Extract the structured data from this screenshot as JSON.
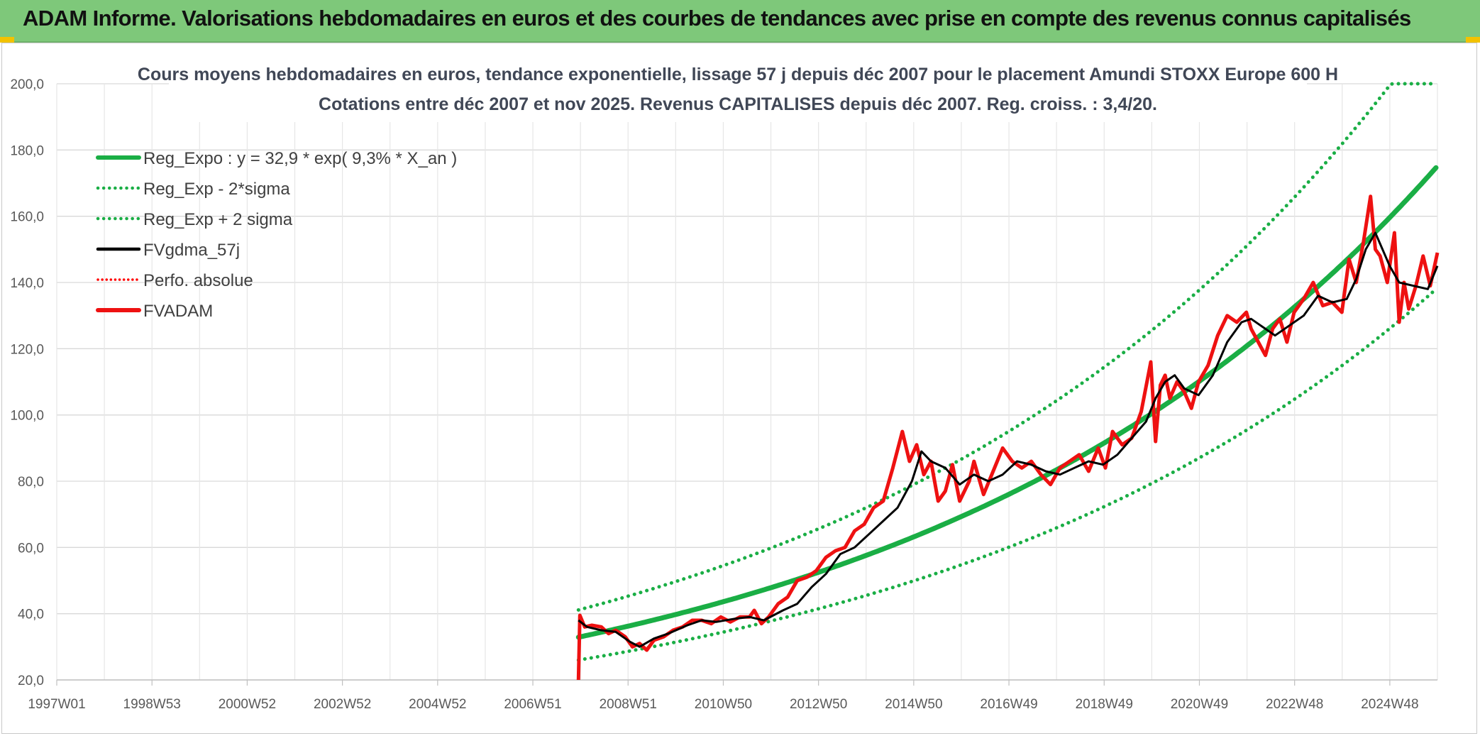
{
  "header": {
    "title": "ADAM Informe. Valorisations hebdomadaires en euros et des courbes de tendances avec prise en compte des revenus connus capitalisés",
    "color": "#7ec87a"
  },
  "chart_data": {
    "type": "line",
    "title": "Cours moyens hebdomadaires en euros, tendance exponentielle, lissage 57 j depuis déc 2007 pour le placement Amundi STOXX Europe 600 H",
    "subtitle": "Cotations entre déc 2007 et nov 2025. Revenus CAPITALISES depuis déc 2007. Reg. croiss. : 3,4/20.",
    "xlabel": "",
    "ylabel": "",
    "ylim": [
      20,
      200
    ],
    "y_ticks": [
      "200,0",
      "180,0",
      "160,0",
      "140,0",
      "120,0",
      "100,0",
      "80,0",
      "60,0",
      "40,0",
      "20,0"
    ],
    "xlim": [
      1997.0,
      2025.9
    ],
    "x_ticks": [
      "1997W01",
      "1998W53",
      "2000W52",
      "2002W52",
      "2004W52",
      "2006W51",
      "2008W51",
      "2010W50",
      "2012W50",
      "2014W50",
      "2016W49",
      "2018W49",
      "2020W49",
      "2022W48",
      "2024W48"
    ],
    "grid": true,
    "legend_position": "top-left",
    "regression": {
      "a": 32.9,
      "rate": 0.093,
      "start": 2007.92,
      "lower_factor": 0.79,
      "upper_factor": 1.25
    },
    "series": [
      {
        "name": "Reg_Expo : y = 32,9 * exp( 9,3% *  X_an )",
        "color": "#1aae45",
        "style": "solid-thick"
      },
      {
        "name": "Reg_Exp - 2*sigma",
        "color": "#1aae45",
        "style": "dotted"
      },
      {
        "name": "Reg_Exp + 2 sigma",
        "color": "#1aae45",
        "style": "dotted"
      },
      {
        "name": "FVgdma_57j",
        "color": "#000000",
        "style": "solid",
        "x": [
          2007.92,
          2008.1,
          2008.4,
          2008.7,
          2009.0,
          2009.2,
          2009.5,
          2009.8,
          2010.2,
          2010.5,
          2010.8,
          2011.2,
          2011.5,
          2011.8,
          2012.2,
          2012.5,
          2012.8,
          2013.1,
          2013.4,
          2013.7,
          2014.0,
          2014.3,
          2014.6,
          2014.9,
          2015.1,
          2015.3,
          2015.6,
          2015.9,
          2016.2,
          2016.5,
          2016.8,
          2017.1,
          2017.4,
          2017.7,
          2018.0,
          2018.3,
          2018.6,
          2018.9,
          2019.2,
          2019.5,
          2019.8,
          2020.0,
          2020.2,
          2020.4,
          2020.6,
          2020.9,
          2021.2,
          2021.5,
          2021.8,
          2022.0,
          2022.2,
          2022.5,
          2022.8,
          2023.1,
          2023.4,
          2023.7,
          2024.0,
          2024.2,
          2024.4,
          2024.6,
          2024.9,
          2025.1,
          2025.4,
          2025.7,
          2025.9
        ],
        "y": [
          38,
          36,
          35,
          34.5,
          31.5,
          30,
          32.5,
          34,
          36.5,
          38,
          37.5,
          38.5,
          39,
          38,
          41,
          43,
          48,
          52,
          58,
          60,
          64,
          68,
          72,
          80,
          89,
          86,
          84,
          79,
          82,
          80,
          82,
          86,
          85,
          83,
          82,
          84,
          86,
          85,
          88,
          93,
          98,
          105,
          110,
          112,
          108,
          106,
          112,
          122,
          128,
          129,
          127,
          124,
          127,
          130,
          136,
          134,
          135,
          141,
          150,
          155,
          145,
          140,
          139,
          138,
          145
        ]
      },
      {
        "name": "Perfo. absolue",
        "color": "#ff0000",
        "style": "dotted"
      },
      {
        "name": "FVADAM",
        "color": "#ee1111",
        "style": "solid-thick",
        "x": [
          2007.92,
          2007.95,
          2008.05,
          2008.2,
          2008.4,
          2008.55,
          2008.7,
          2008.9,
          2009.05,
          2009.2,
          2009.35,
          2009.5,
          2009.7,
          2009.9,
          2010.1,
          2010.3,
          2010.5,
          2010.7,
          2010.9,
          2011.1,
          2011.3,
          2011.5,
          2011.6,
          2011.75,
          2011.9,
          2012.1,
          2012.3,
          2012.5,
          2012.7,
          2012.9,
          2013.1,
          2013.3,
          2013.5,
          2013.7,
          2013.9,
          2014.1,
          2014.3,
          2014.5,
          2014.7,
          2014.85,
          2015.0,
          2015.15,
          2015.3,
          2015.45,
          2015.6,
          2015.75,
          2015.9,
          2016.1,
          2016.2,
          2016.4,
          2016.6,
          2016.8,
          2017.0,
          2017.2,
          2017.4,
          2017.6,
          2017.8,
          2018.0,
          2018.2,
          2018.4,
          2018.6,
          2018.8,
          2018.95,
          2019.1,
          2019.3,
          2019.5,
          2019.7,
          2019.9,
          2020.0,
          2020.1,
          2020.2,
          2020.3,
          2020.45,
          2020.6,
          2020.75,
          2020.9,
          2021.1,
          2021.3,
          2021.5,
          2021.7,
          2021.9,
          2022.0,
          2022.15,
          2022.3,
          2022.45,
          2022.6,
          2022.75,
          2022.9,
          2023.1,
          2023.3,
          2023.5,
          2023.7,
          2023.9,
          2024.05,
          2024.2,
          2024.35,
          2024.5,
          2024.6,
          2024.7,
          2024.85,
          2025.0,
          2025.1,
          2025.2,
          2025.3,
          2025.45,
          2025.6,
          2025.75,
          2025.9
        ],
        "y": [
          20,
          39.5,
          36,
          36.5,
          36,
          34,
          35,
          33,
          30,
          31,
          29,
          32,
          33,
          35,
          36,
          38,
          38,
          37,
          39,
          37.5,
          39,
          39,
          41,
          37,
          39,
          43,
          45,
          50,
          51,
          53,
          57,
          59,
          60,
          65,
          67,
          72,
          74,
          84,
          95,
          86,
          91,
          82,
          86,
          74,
          77,
          85,
          74,
          80,
          86,
          76,
          83,
          90,
          86,
          84,
          86,
          82,
          79,
          84,
          86,
          88,
          83,
          90,
          84,
          95,
          91,
          93,
          101,
          116,
          92,
          109,
          112,
          105,
          110,
          107,
          102,
          110,
          115,
          124,
          130,
          128,
          131,
          126,
          122,
          118,
          126,
          129,
          122,
          131,
          135,
          140,
          133,
          134,
          131,
          147,
          140,
          152,
          166,
          150,
          148,
          140,
          155,
          128,
          140,
          132,
          139,
          148,
          139,
          149
        ]
      }
    ]
  }
}
